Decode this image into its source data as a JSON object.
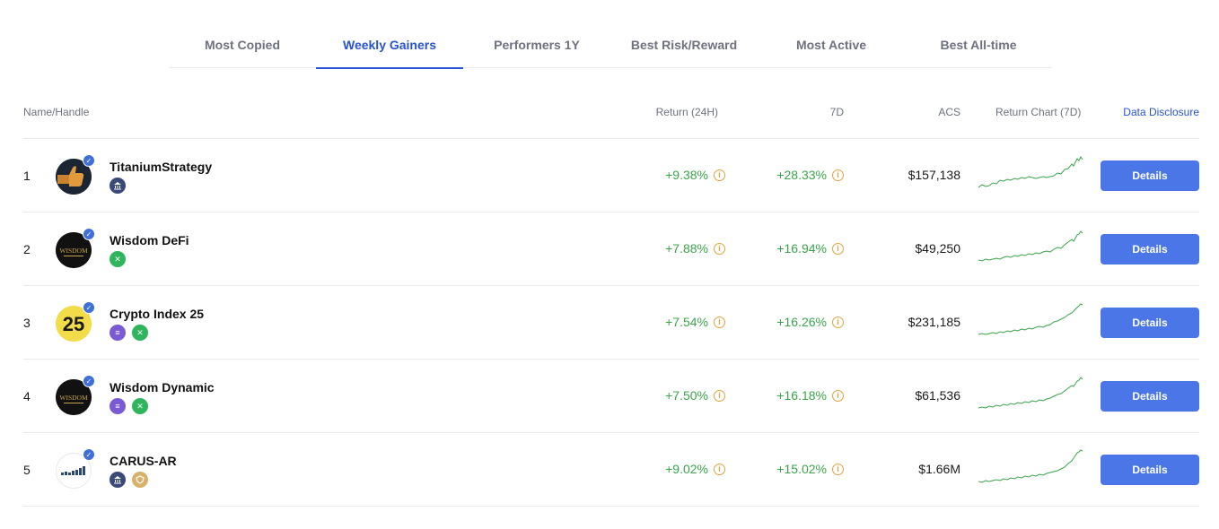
{
  "tabs": [
    {
      "label": "Most Copied",
      "active": false
    },
    {
      "label": "Weekly Gainers",
      "active": true
    },
    {
      "label": "Performers 1Y",
      "active": false
    },
    {
      "label": "Best Risk/Reward",
      "active": false
    },
    {
      "label": "Most Active",
      "active": false
    },
    {
      "label": "Best All-time",
      "active": false
    }
  ],
  "columns": {
    "name": "Name/Handle",
    "return_24h": "Return (24H)",
    "return_7d": "7D",
    "acs": "ACS",
    "chart": "Return Chart (7D)",
    "disclosure": "Data Disclosure"
  },
  "colors": {
    "accent": "#2653d6",
    "positive": "#3aa44a",
    "button": "#4a76e8",
    "info": "#e0a43c"
  },
  "rows": [
    {
      "rank": "1",
      "name": "TitaniumStrategy",
      "avatar_icon": "thumbs-up-icon",
      "badges": [
        "bank-icon"
      ],
      "return_24h": "+9.38%",
      "return_7d": "+28.33%",
      "acs": "$157,138",
      "details_label": "Details"
    },
    {
      "rank": "2",
      "name": "Wisdom DeFi",
      "avatar_icon": "wisdom-logo-icon",
      "avatar_text": "WISDOM",
      "badges": [
        "x-icon"
      ],
      "return_24h": "+7.88%",
      "return_7d": "+16.94%",
      "acs": "$49,250",
      "details_label": "Details"
    },
    {
      "rank": "3",
      "name": "Crypto Index 25",
      "avatar_icon": "index-25-icon",
      "avatar_text": "25",
      "badges": [
        "doc-icon",
        "x-icon"
      ],
      "return_24h": "+7.54%",
      "return_7d": "+16.26%",
      "acs": "$231,185",
      "details_label": "Details"
    },
    {
      "rank": "4",
      "name": "Wisdom Dynamic",
      "avatar_icon": "wisdom-logo-icon",
      "avatar_text": "WISDOM",
      "badges": [
        "doc-icon",
        "x-icon"
      ],
      "return_24h": "+7.50%",
      "return_7d": "+16.18%",
      "acs": "$61,536",
      "details_label": "Details"
    },
    {
      "rank": "5",
      "name": "CARUS-AR",
      "avatar_icon": "bar-chart-icon",
      "badges": [
        "bank-icon",
        "gold-shield-icon"
      ],
      "return_24h": "+9.02%",
      "return_7d": "+15.02%",
      "acs": "$1.66M",
      "details_label": "Details"
    }
  ],
  "info_glyph": "i",
  "verified_glyph": "✓"
}
